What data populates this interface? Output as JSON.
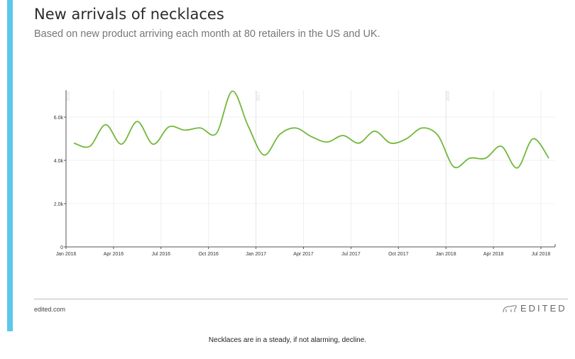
{
  "header": {
    "title": "New arrivals of necklaces",
    "subtitle": "Based on new product arriving each month at 80 retailers in the US and UK."
  },
  "footer": {
    "site": "edited.com",
    "brand": "EDITED",
    "caption": "Necklaces are in a steady, if not alarming, decline."
  },
  "colors": {
    "accent": "#5bc8ec",
    "line": "#72b83a"
  },
  "chart_data": {
    "type": "line",
    "title": "New arrivals of necklaces",
    "xlabel": "",
    "ylabel": "",
    "ylim": [
      0,
      7250
    ],
    "yticks": [
      {
        "v": 0,
        "label": "0"
      },
      {
        "v": 2000,
        "label": "2.0k"
      },
      {
        "v": 4000,
        "label": "4.0k"
      },
      {
        "v": 6000,
        "label": "6.0k"
      }
    ],
    "xticks": [
      {
        "m": 0,
        "label": "Jan 2016"
      },
      {
        "m": 3,
        "label": "Apr 2016"
      },
      {
        "m": 6,
        "label": "Jul 2016"
      },
      {
        "m": 9,
        "label": "Oct 2016"
      },
      {
        "m": 12,
        "label": "Jan 2017"
      },
      {
        "m": 15,
        "label": "Apr 2017"
      },
      {
        "m": 18,
        "label": "Jul 2017"
      },
      {
        "m": 21,
        "label": "Oct 2017"
      },
      {
        "m": 24,
        "label": "Jan 2018"
      },
      {
        "m": 27,
        "label": "Apr 2018"
      },
      {
        "m": 30,
        "label": "Jul 2018"
      }
    ],
    "year_markers": [
      {
        "m": 0,
        "label": "2016"
      },
      {
        "m": 12,
        "label": "2017"
      },
      {
        "m": 24,
        "label": "2018"
      }
    ],
    "grid": true,
    "series": [
      {
        "name": "Necklaces",
        "x_start": "Jan 2016",
        "values": [
          4800,
          4650,
          5650,
          4750,
          5800,
          4750,
          5550,
          5400,
          5500,
          5250,
          7200,
          5600,
          4250,
          5200,
          5500,
          5100,
          4850,
          5150,
          4800,
          5350,
          4800,
          5000,
          5500,
          5150,
          3700,
          4100,
          4100,
          4650,
          3650,
          5000,
          4100
        ]
      }
    ]
  }
}
